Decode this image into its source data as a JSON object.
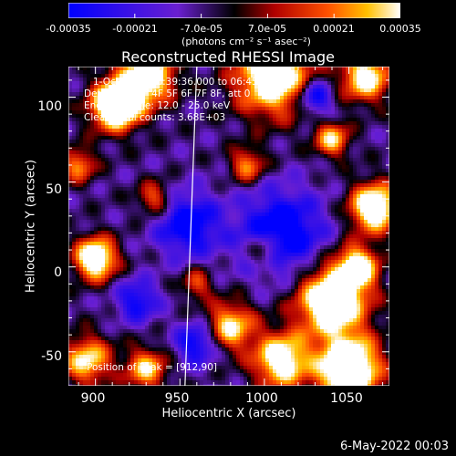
{
  "chart_data": {
    "type": "heatmap",
    "title": "Reconstructed RHESSI Image",
    "xlabel": "Heliocentric X (arcsec)",
    "ylabel": "Heliocentric Y (arcsec)",
    "xlim": [
      884,
      1074
    ],
    "ylim": [
      -70,
      118
    ],
    "x_ticks": [
      "900",
      "950",
      "1000",
      "1050"
    ],
    "y_ticks": [
      "100",
      "50",
      "0",
      "-50"
    ],
    "colorbar": {
      "ticks": [
        "-0.00035",
        "-0.00021",
        "-7.0e-05",
        "7.0e-05",
        "0.00021",
        "0.00035"
      ],
      "units": "(photons cm⁻² s⁻¹ asec⁻²)",
      "range": [
        -0.00035,
        0.00035
      ]
    },
    "annotations": [
      "1-Oct-2003 06:39:36.000 to 06:45:36.000",
      "Detectors: 3F 4F 5F 6F 7F 8F, att 0",
      "Energy Range: 12.0 - 25.0 keV",
      "Clean    Total counts: 3.68E+03"
    ],
    "peak_label": "Position of Peak = [912,90]",
    "limb_line": [
      [
        960,
        118
      ],
      [
        953,
        -70
      ]
    ]
  },
  "timestamp": "6-May-2022 00:03"
}
